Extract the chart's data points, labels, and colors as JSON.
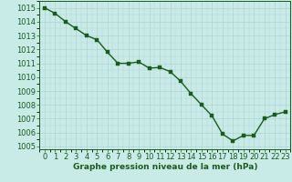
{
  "x": [
    0,
    1,
    2,
    3,
    4,
    5,
    6,
    7,
    8,
    9,
    10,
    11,
    12,
    13,
    14,
    15,
    16,
    17,
    18,
    19,
    20,
    21,
    22,
    23
  ],
  "y": [
    1015.0,
    1014.6,
    1014.0,
    1013.5,
    1013.0,
    1012.7,
    1011.8,
    1011.0,
    1011.0,
    1011.1,
    1010.65,
    1010.7,
    1010.4,
    1009.7,
    1008.8,
    1008.0,
    1007.2,
    1005.9,
    1005.4,
    1005.8,
    1005.8,
    1007.0,
    1007.3,
    1007.5
  ],
  "line_color": "#1a5c1a",
  "marker_color": "#1a5c1a",
  "bg_color": "#c8ebe8",
  "grid_color": "#afd4d0",
  "text_color": "#1a5c1a",
  "xlabel": "Graphe pression niveau de la mer (hPa)",
  "ylim": [
    1004.8,
    1015.5
  ],
  "xlim": [
    -0.5,
    23.5
  ],
  "yticks": [
    1005,
    1006,
    1007,
    1008,
    1009,
    1010,
    1011,
    1012,
    1013,
    1014,
    1015
  ],
  "xticks": [
    0,
    1,
    2,
    3,
    4,
    5,
    6,
    7,
    8,
    9,
    10,
    11,
    12,
    13,
    14,
    15,
    16,
    17,
    18,
    19,
    20,
    21,
    22,
    23
  ],
  "xlabel_fontsize": 6.5,
  "tick_fontsize": 6.0,
  "marker_size": 2.2,
  "line_width": 1.0
}
